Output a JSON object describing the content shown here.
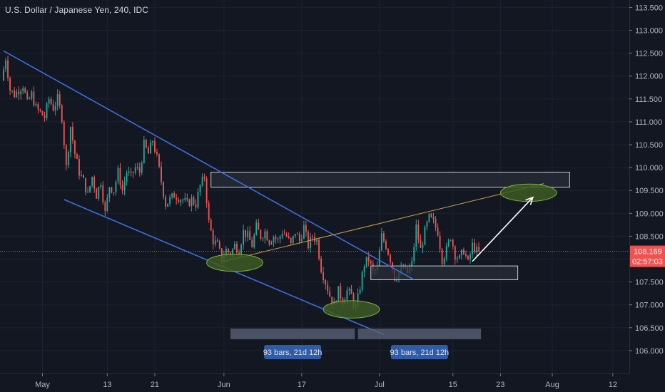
{
  "header": {
    "symbol_title": "U.S. Dollar / Japanese Yen, 240, IDC"
  },
  "colors": {
    "background": "#131722",
    "grid": "#1e2230",
    "candle_up": "#26a69a",
    "candle_down": "#ef5350",
    "trendline": "#3a6fd8",
    "support_line": "#c8a24a",
    "zone_fill": "#2a2e39",
    "zone_border": "#c9ccd6",
    "ellipse_fill": "#3e5a23",
    "ellipse_border": "#7cb342",
    "arrow": "#ffffff",
    "last_price_badge": "#ef5350",
    "range_box": "#5d6678",
    "range_label_bg": "#2f5ca8"
  },
  "chart_data": {
    "type": "candlestick",
    "title": "U.S. Dollar / Japanese Yen, 240, IDC",
    "xlabel": "",
    "ylabel": "",
    "x_ticks": [
      {
        "label": "May",
        "index": 9
      },
      {
        "label": "13",
        "index": 24
      },
      {
        "label": "21",
        "index": 35
      },
      {
        "label": "Jun",
        "index": 51
      },
      {
        "label": "17",
        "index": 69
      },
      {
        "label": "Jul",
        "index": 87
      },
      {
        "label": "15",
        "index": 104
      },
      {
        "label": "23",
        "index": 115
      },
      {
        "label": "Aug",
        "index": 127
      },
      {
        "label": "12",
        "index": 141
      }
    ],
    "y_ticks": [
      106.0,
      106.5,
      107.0,
      107.5,
      108.0,
      108.5,
      109.0,
      109.5,
      110.0,
      110.5,
      111.0,
      111.5,
      112.0,
      112.5,
      113.0,
      113.5
    ],
    "y_tick_labels": [
      "106.000",
      "106.500",
      "107.000",
      "107.500",
      "108.000",
      "108.500",
      "109.000",
      "109.500",
      "110.000",
      "110.500",
      "111.000",
      "111.500",
      "112.000",
      "112.500",
      "113.000",
      "113.500"
    ],
    "ylim": [
      105.5,
      113.6
    ],
    "x_range_index": [
      0,
      144
    ],
    "last_price": 108.169,
    "last_price_label": "108.169",
    "countdown_label": "02:57:03",
    "grid": false,
    "price_path": [
      [
        0,
        111.9
      ],
      [
        1,
        112.4
      ],
      [
        2,
        111.7
      ],
      [
        3,
        111.6
      ],
      [
        5,
        111.8
      ],
      [
        6,
        111.4
      ],
      [
        7,
        111.6
      ],
      [
        8,
        111.3
      ],
      [
        10,
        111.1
      ],
      [
        11,
        111.5
      ],
      [
        12,
        111.3
      ],
      [
        13,
        111.5
      ],
      [
        14,
        111.1
      ],
      [
        15,
        110.0
      ],
      [
        16,
        110.9
      ],
      [
        17,
        110.3
      ],
      [
        18,
        109.9
      ],
      [
        19,
        109.7
      ],
      [
        20,
        109.4
      ],
      [
        21,
        109.8
      ],
      [
        22,
        109.4
      ],
      [
        23,
        109.7
      ],
      [
        24,
        109.0
      ],
      [
        25,
        109.6
      ],
      [
        26,
        109.5
      ],
      [
        27,
        109.9
      ],
      [
        28,
        109.5
      ],
      [
        29,
        109.9
      ],
      [
        30,
        109.8
      ],
      [
        31,
        110.0
      ],
      [
        32,
        109.9
      ],
      [
        33,
        110.5
      ],
      [
        34,
        110.3
      ],
      [
        35,
        110.6
      ],
      [
        36,
        110.2
      ],
      [
        37,
        109.7
      ],
      [
        38,
        109.2
      ],
      [
        39,
        109.3
      ],
      [
        40,
        109.4
      ],
      [
        42,
        109.3
      ],
      [
        43,
        109.2
      ],
      [
        44,
        109.3
      ],
      [
        45,
        109.2
      ],
      [
        46,
        109.6
      ],
      [
        47,
        109.8
      ],
      [
        48,
        108.8
      ],
      [
        49,
        108.4
      ],
      [
        50,
        108.3
      ],
      [
        51,
        108.0
      ],
      [
        52,
        108.2
      ],
      [
        53,
        108.1
      ],
      [
        54,
        108.3
      ],
      [
        55,
        108.2
      ],
      [
        56,
        108.6
      ],
      [
        57,
        108.5
      ],
      [
        58,
        108.3
      ],
      [
        59,
        108.7
      ],
      [
        60,
        108.5
      ],
      [
        61,
        108.6
      ],
      [
        62,
        108.4
      ],
      [
        63,
        108.5
      ],
      [
        64,
        108.4
      ],
      [
        65,
        108.6
      ],
      [
        66,
        108.5
      ],
      [
        67,
        108.3
      ],
      [
        68,
        108.6
      ],
      [
        69,
        108.4
      ],
      [
        70,
        108.7
      ],
      [
        71,
        108.3
      ],
      [
        72,
        108.5
      ],
      [
        73,
        108.4
      ],
      [
        74,
        107.8
      ],
      [
        75,
        107.5
      ],
      [
        76,
        107.2
      ],
      [
        77,
        107.0
      ],
      [
        78,
        107.3
      ],
      [
        79,
        107.1
      ],
      [
        80,
        107.3
      ],
      [
        81,
        107.2
      ],
      [
        82,
        106.9
      ],
      [
        83,
        107.4
      ],
      [
        84,
        107.9
      ],
      [
        85,
        108.0
      ],
      [
        86,
        107.7
      ],
      [
        87,
        107.8
      ],
      [
        88,
        108.5
      ],
      [
        89,
        108.3
      ],
      [
        90,
        108.0
      ],
      [
        91,
        107.6
      ],
      [
        92,
        107.7
      ],
      [
        93,
        107.8
      ],
      [
        94,
        107.7
      ],
      [
        95,
        107.9
      ],
      [
        96,
        108.7
      ],
      [
        97,
        108.2
      ],
      [
        98,
        108.6
      ],
      [
        99,
        108.9
      ],
      [
        100,
        108.8
      ],
      [
        101,
        108.6
      ],
      [
        102,
        108.0
      ],
      [
        103,
        108.2
      ],
      [
        104,
        108.5
      ],
      [
        105,
        108.1
      ],
      [
        106,
        108.0
      ],
      [
        107,
        108.2
      ],
      [
        108,
        107.9
      ],
      [
        109,
        108.3
      ],
      [
        110,
        108.17
      ]
    ],
    "annotations": {
      "upper_trendline": {
        "from": {
          "index": 0,
          "price": 112.55
        },
        "to": {
          "index": 95,
          "price": 107.55
        }
      },
      "lower_trendline": {
        "from": {
          "index": 14,
          "price": 109.3
        },
        "to": {
          "index": 88,
          "price": 106.35
        }
      },
      "support_line": {
        "from": {
          "index": 51,
          "price": 107.95
        },
        "to": {
          "index": 125,
          "price": 109.65
        }
      },
      "resistance_zone": {
        "from_index": 48,
        "to_index": 131,
        "top": 109.9,
        "bottom": 109.57
      },
      "support_zone": {
        "from_index": 85,
        "to_index": 119,
        "top": 107.85,
        "bottom": 107.55
      },
      "ellipses": [
        {
          "center_index": 53.5,
          "center_price": 107.92,
          "rx_bars": 6.5,
          "ry_price": 0.19
        },
        {
          "center_index": 80.5,
          "center_price": 106.9,
          "rx_bars": 6.5,
          "ry_price": 0.19
        },
        {
          "center_index": 121.5,
          "center_price": 109.45,
          "rx_bars": 6.5,
          "ry_price": 0.19
        }
      ],
      "projection_arrow": {
        "from": {
          "index": 108.5,
          "price": 107.95
        },
        "to": {
          "index": 122.5,
          "price": 109.35
        }
      }
    },
    "date_ranges": [
      {
        "from_index": 52.5,
        "to_index": 81.3,
        "label": "93 bars, 21d 12h"
      },
      {
        "from_index": 82.0,
        "to_index": 110.5,
        "label": "93 bars, 21d 12h"
      }
    ]
  }
}
